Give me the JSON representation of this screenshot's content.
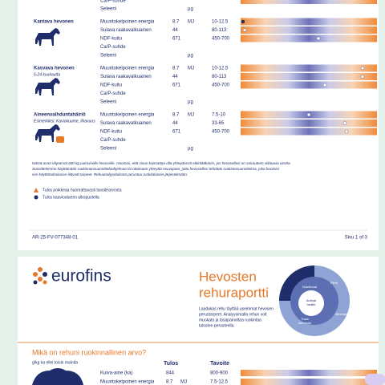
{
  "page1": {
    "partial_rows": {
      "label_a": "Ca/P-suhde",
      "label_b": "Seleeni",
      "unit_b": "µg"
    },
    "sections": [
      {
        "title": "Kantava hevonen",
        "rows": [
          {
            "label": "Muuntokelpoinen energia",
            "value": "8.7",
            "unit": "MJ",
            "target": "10-12.5"
          },
          {
            "label": "Sulava raakavalkuainen",
            "value": "44",
            "target": "80-113"
          },
          {
            "label": "NDF-kuitu",
            "value": "671",
            "target": "450-700"
          },
          {
            "label": "Ca/P-suhde"
          },
          {
            "label": "Seleeni",
            "unit": "µg"
          }
        ]
      },
      {
        "title": "Kasvava hevonen",
        "subtitle": "6-24 kuukautta",
        "rows": [
          {
            "label": "Muuntokelpoinen energia",
            "value": "8.7",
            "unit": "MJ",
            "target": "10-12.5"
          },
          {
            "label": "Sulava raakavalkuainen",
            "value": "44",
            "target": "80-113"
          },
          {
            "label": "NDF-kuitu",
            "value": "671",
            "target": "450-700"
          },
          {
            "label": "Ca/P-suhde"
          },
          {
            "label": "Seleeni",
            "unit": "µg"
          }
        ]
      },
      {
        "title": "Aineenvaihduntahäiriö",
        "subtitle": "Esimerkiksi: Kaviokuume, lihavuus",
        "rows": [
          {
            "label": "Muuntokelpoinen energia",
            "value": "8.7",
            "unit": "MJ",
            "target": "7.5-10"
          },
          {
            "label": "Sulava raakavalkuainen",
            "value": "44",
            "target": "33-65"
          },
          {
            "label": "NDF-kuitu",
            "value": "671",
            "target": "450-700"
          },
          {
            "label": "Ca/P-suhde"
          },
          {
            "label": "Seleeni",
            "unit": "µg"
          }
        ]
      }
    ],
    "note": [
      "Nämä arvot ohjearvot 600 kg painoiselle hevoselle. Huomioi, että sinun kannattaa olla yhteydessä eläinlääkäriin, jos hevosellasi on sairauteen viittaavia oireita.",
      "Suosittelemme käyttämään ruokinnansuunnitteluohjelmaa tai ottamaan yhteyttä neuvojaan, jotta hevosellesi tehdään ruokintasuunnitelma, joka huomioi",
      "sen käyttötarkoitusen liittyvät tarpeet. Rehuanalyysitulosta perustuu ruokitalaisen järjestelmään."
    ],
    "legend": {
      "warning": "Tulos poikkeaa huomattavasti tavoitearvosta",
      "outside": "Tulos kaavioalueen ulkopuolella"
    },
    "footer": {
      "code": "AR-25-FV-077348-01",
      "page": "Sivu 1 of 3"
    }
  },
  "page2": {
    "logo": "eurofins",
    "title_1": "Hevosten",
    "title_2": "rehuraportti",
    "intro": [
      "Laadukas rehu täyttää useimmat hevosen",
      "perustarpeet. Analyysimalla rehun voit",
      "muokata ja tasapainottaa ruokintaa",
      "tulosten perusteella."
    ],
    "diagram": {
      "nutritional": "Nutritional",
      "fibre": "Fibre",
      "animal_health_1": "Animal",
      "animal_health_2": "health",
      "minerals": "Minerals",
      "trace_1": "Trace",
      "trace_2": "elements"
    },
    "question": "Mikä on rehuni ruokinnallinen arvo?",
    "units_note": "g/kg ka ellei toisin mainita",
    "col_result": "Tulos",
    "col_target": "Tavoite",
    "rows": [
      {
        "label": "Kuiva-aine (ka)",
        "value": "844",
        "target": "800-900"
      },
      {
        "label": "Muuntokelpoinen energia",
        "value": "8.7",
        "unit": "MJ",
        "target": "7.5-12.5"
      }
    ]
  }
}
